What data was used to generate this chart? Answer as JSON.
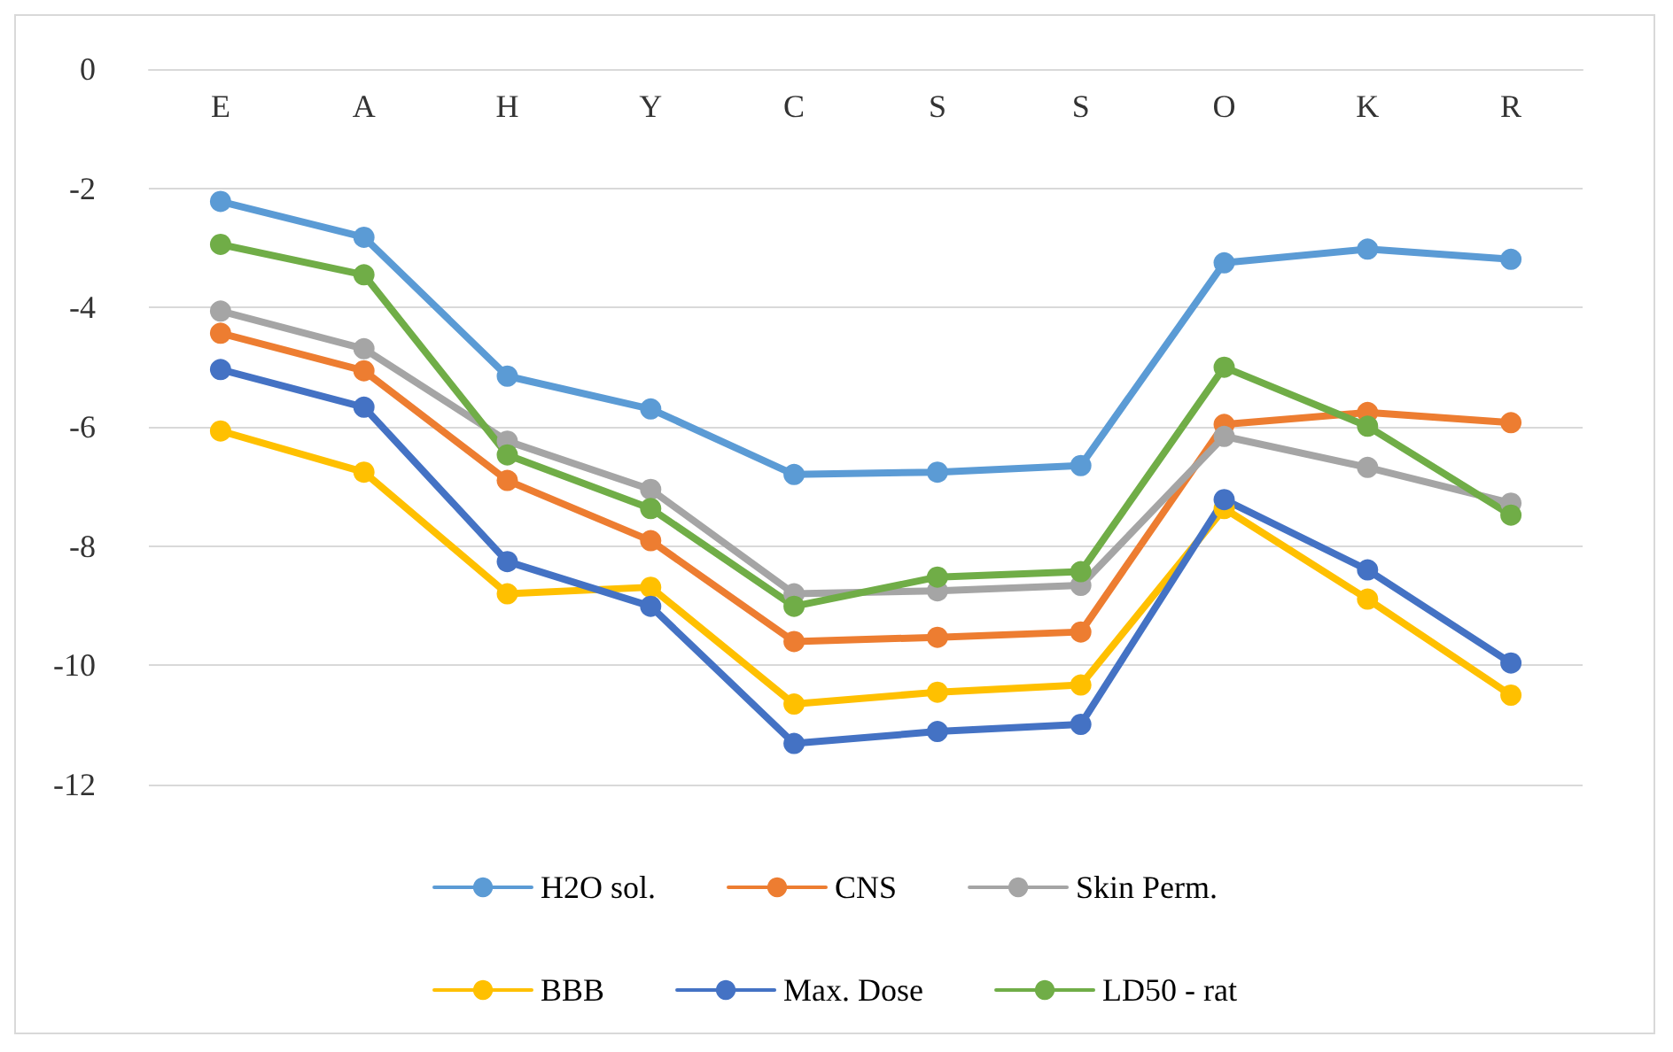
{
  "chart_data": {
    "type": "line",
    "categories": [
      "E",
      "A",
      "H",
      "Y",
      "C",
      "S",
      "S",
      "O",
      "K",
      "R"
    ],
    "series": [
      {
        "name": "H2O sol.",
        "color": "#5b9bd5",
        "values": [
          -2.22,
          -2.82,
          -5.15,
          -5.7,
          -6.8,
          -6.76,
          -6.65,
          -3.25,
          -3.02,
          -3.19
        ]
      },
      {
        "name": "CNS",
        "color": "#ed7d31",
        "values": [
          -4.43,
          -5.06,
          -6.9,
          -7.91,
          -9.6,
          -9.53,
          -9.44,
          -5.96,
          -5.76,
          -5.93
        ]
      },
      {
        "name": "Skin Perm.",
        "color": "#a5a5a5",
        "values": [
          -4.06,
          -4.69,
          -6.24,
          -7.05,
          -8.8,
          -8.75,
          -8.66,
          -6.16,
          -6.68,
          -7.28
        ]
      },
      {
        "name": "BBB",
        "color": "#ffc000",
        "values": [
          -6.07,
          -6.76,
          -8.8,
          -8.69,
          -10.65,
          -10.45,
          -10.33,
          -7.37,
          -8.89,
          -10.5
        ]
      },
      {
        "name": "Max. Dose",
        "color": "#4472c4",
        "values": [
          -5.04,
          -5.67,
          -8.26,
          -9.01,
          -11.31,
          -11.11,
          -10.99,
          -7.22,
          -8.4,
          -9.96
        ]
      },
      {
        "name": "LD50 - rat",
        "color": "#70ad47",
        "values": [
          -2.94,
          -3.45,
          -6.47,
          -7.37,
          -9.01,
          -8.52,
          -8.43,
          -5.0,
          -5.99,
          -7.48
        ]
      }
    ],
    "ylim": [
      -12,
      0
    ],
    "yticks": [
      -12,
      -10,
      -8,
      -6,
      -4,
      -2,
      0
    ],
    "grid": "y",
    "legend": "bottom",
    "marker": "circle",
    "line_style": "solid"
  }
}
